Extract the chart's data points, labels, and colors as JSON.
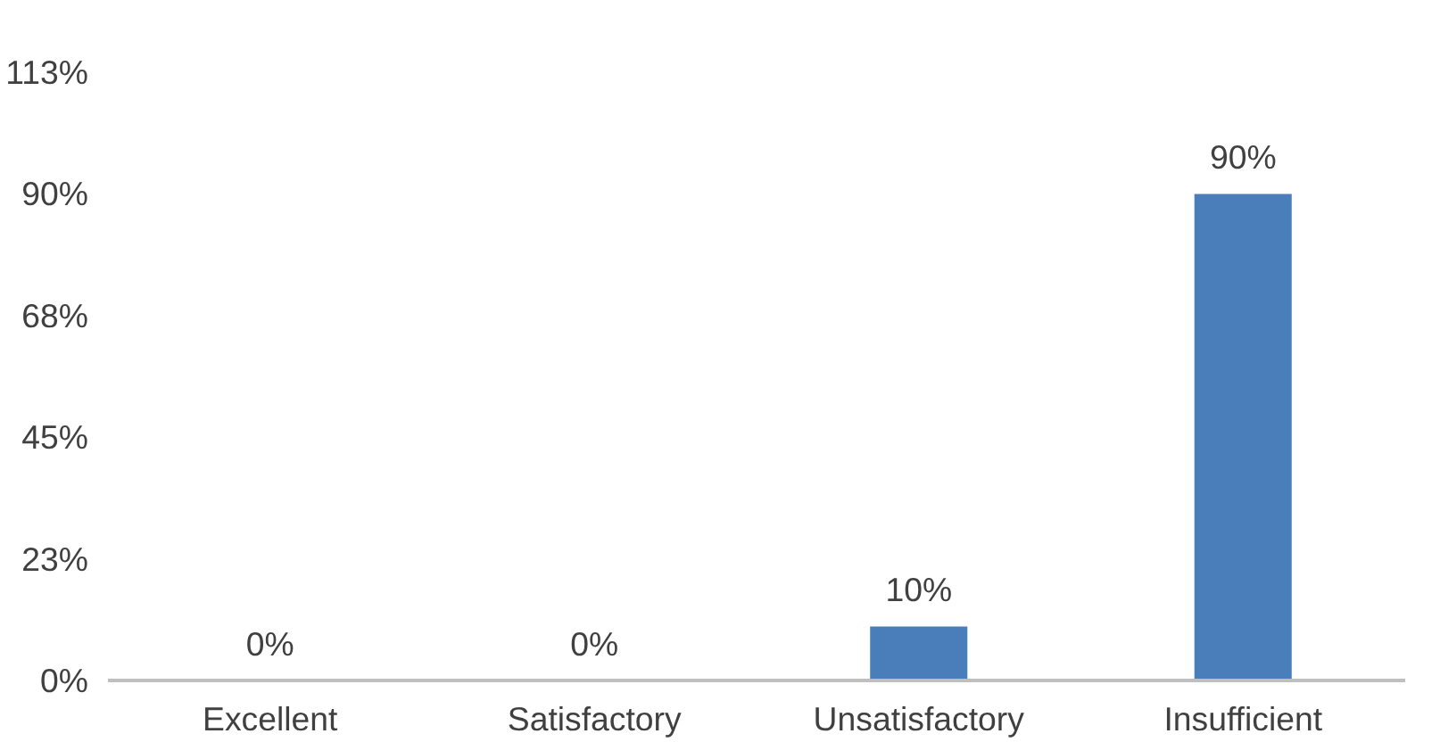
{
  "chart_data": {
    "type": "bar",
    "categories": [
      "Excellent",
      "Satisfactory",
      "Unsatisfactory",
      "Insufficient"
    ],
    "values": [
      0,
      0,
      10,
      90
    ],
    "color": "#4a7ebb",
    "value_labels": [
      "0%",
      "0%",
      "10%",
      "90%"
    ],
    "ylim": [
      0,
      112.5
    ],
    "yticks": [
      {
        "value": 0,
        "label": "0%"
      },
      {
        "value": 22.5,
        "label": "23%"
      },
      {
        "value": 45,
        "label": "45%"
      },
      {
        "value": 67.5,
        "label": "68%"
      },
      {
        "value": 90,
        "label": "90%"
      },
      {
        "value": 112.5,
        "label": "113%"
      }
    ],
    "grid": false
  }
}
